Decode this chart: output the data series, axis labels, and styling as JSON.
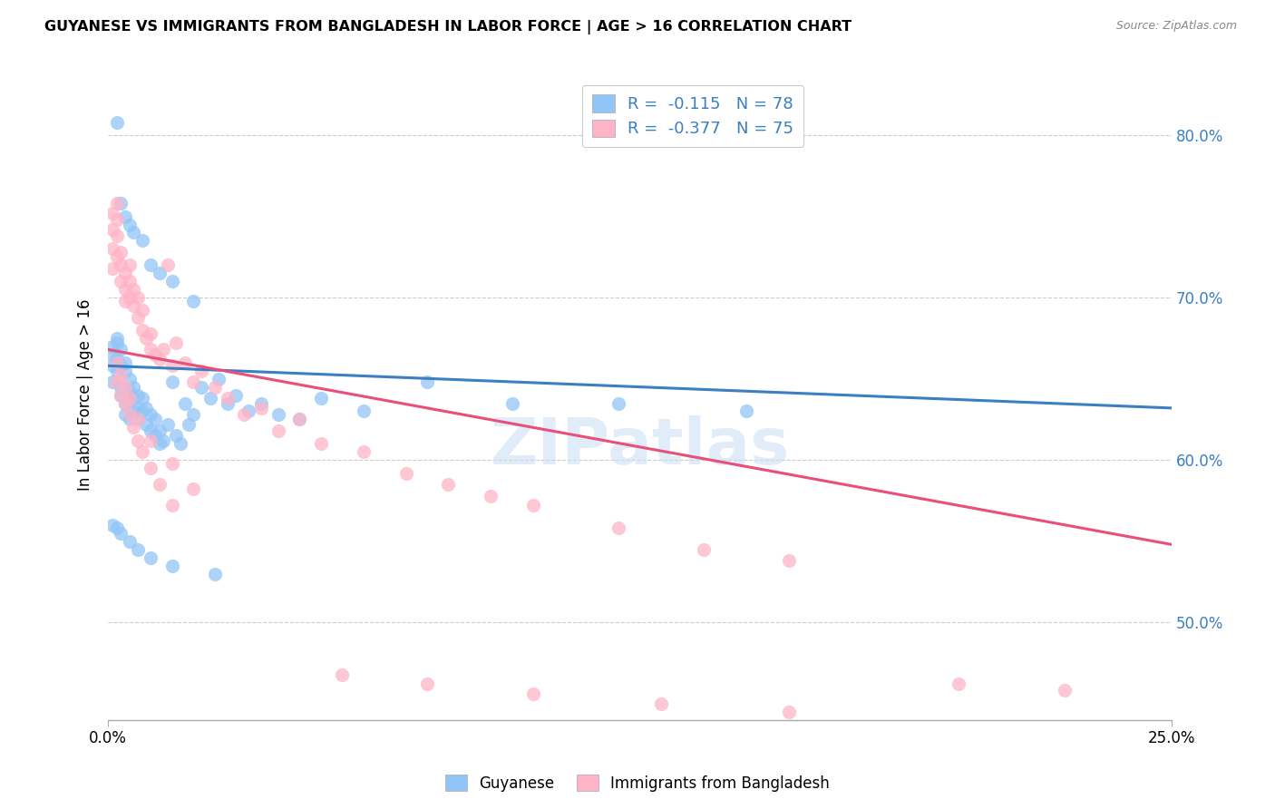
{
  "title": "GUYANESE VS IMMIGRANTS FROM BANGLADESH IN LABOR FORCE | AGE > 16 CORRELATION CHART",
  "source": "Source: ZipAtlas.com",
  "ylabel": "In Labor Force | Age > 16",
  "y_tick_values": [
    0.8,
    0.7,
    0.6,
    0.5
  ],
  "x_range": [
    0.0,
    0.25
  ],
  "y_range": [
    0.44,
    0.84
  ],
  "legend_label1": "Guyanese",
  "legend_label2": "Immigrants from Bangladesh",
  "color_blue": "#92c5f7",
  "color_pink": "#ffb3c6",
  "color_blue_line": "#3a7fc1",
  "color_pink_line": "#e8507a",
  "watermark": "ZIPatlas",
  "blue_line_y0": 0.658,
  "blue_line_y1": 0.632,
  "pink_line_y0": 0.668,
  "pink_line_y1": 0.548,
  "guyanese_x": [
    0.001,
    0.001,
    0.001,
    0.001,
    0.002,
    0.002,
    0.002,
    0.002,
    0.002,
    0.003,
    0.003,
    0.003,
    0.003,
    0.004,
    0.004,
    0.004,
    0.004,
    0.005,
    0.005,
    0.005,
    0.005,
    0.006,
    0.006,
    0.006,
    0.007,
    0.007,
    0.007,
    0.008,
    0.008,
    0.009,
    0.009,
    0.01,
    0.01,
    0.011,
    0.011,
    0.012,
    0.012,
    0.013,
    0.014,
    0.015,
    0.016,
    0.017,
    0.018,
    0.019,
    0.02,
    0.022,
    0.024,
    0.026,
    0.028,
    0.03,
    0.033,
    0.036,
    0.04,
    0.045,
    0.05,
    0.06,
    0.075,
    0.095,
    0.12,
    0.15,
    0.002,
    0.003,
    0.004,
    0.005,
    0.006,
    0.008,
    0.01,
    0.012,
    0.015,
    0.02,
    0.001,
    0.002,
    0.003,
    0.005,
    0.007,
    0.01,
    0.015,
    0.025
  ],
  "guyanese_y": [
    0.665,
    0.67,
    0.658,
    0.648,
    0.672,
    0.66,
    0.655,
    0.662,
    0.675,
    0.658,
    0.668,
    0.645,
    0.64,
    0.655,
    0.66,
    0.635,
    0.628,
    0.65,
    0.642,
    0.638,
    0.625,
    0.645,
    0.638,
    0.63,
    0.64,
    0.632,
    0.625,
    0.638,
    0.63,
    0.632,
    0.622,
    0.628,
    0.618,
    0.625,
    0.615,
    0.618,
    0.61,
    0.612,
    0.622,
    0.648,
    0.615,
    0.61,
    0.635,
    0.622,
    0.628,
    0.645,
    0.638,
    0.65,
    0.635,
    0.64,
    0.63,
    0.635,
    0.628,
    0.625,
    0.638,
    0.63,
    0.648,
    0.635,
    0.635,
    0.63,
    0.808,
    0.758,
    0.75,
    0.745,
    0.74,
    0.735,
    0.72,
    0.715,
    0.71,
    0.698,
    0.56,
    0.558,
    0.555,
    0.55,
    0.545,
    0.54,
    0.535,
    0.53
  ],
  "bangladesh_x": [
    0.001,
    0.001,
    0.001,
    0.001,
    0.002,
    0.002,
    0.002,
    0.002,
    0.003,
    0.003,
    0.003,
    0.004,
    0.004,
    0.004,
    0.005,
    0.005,
    0.005,
    0.006,
    0.006,
    0.007,
    0.007,
    0.008,
    0.008,
    0.009,
    0.01,
    0.01,
    0.011,
    0.012,
    0.013,
    0.014,
    0.015,
    0.016,
    0.018,
    0.02,
    0.022,
    0.025,
    0.028,
    0.032,
    0.036,
    0.04,
    0.045,
    0.05,
    0.06,
    0.07,
    0.08,
    0.09,
    0.1,
    0.12,
    0.14,
    0.16,
    0.002,
    0.003,
    0.004,
    0.005,
    0.006,
    0.007,
    0.008,
    0.01,
    0.012,
    0.015,
    0.002,
    0.003,
    0.004,
    0.005,
    0.007,
    0.01,
    0.015,
    0.02,
    0.055,
    0.075,
    0.1,
    0.13,
    0.16,
    0.2,
    0.225
  ],
  "bangladesh_y": [
    0.73,
    0.718,
    0.742,
    0.752,
    0.725,
    0.738,
    0.748,
    0.758,
    0.72,
    0.71,
    0.728,
    0.715,
    0.705,
    0.698,
    0.72,
    0.71,
    0.7,
    0.705,
    0.695,
    0.7,
    0.688,
    0.692,
    0.68,
    0.675,
    0.678,
    0.668,
    0.665,
    0.662,
    0.668,
    0.72,
    0.658,
    0.672,
    0.66,
    0.648,
    0.655,
    0.645,
    0.638,
    0.628,
    0.632,
    0.618,
    0.625,
    0.61,
    0.605,
    0.592,
    0.585,
    0.578,
    0.572,
    0.558,
    0.545,
    0.538,
    0.648,
    0.64,
    0.635,
    0.628,
    0.62,
    0.612,
    0.605,
    0.595,
    0.585,
    0.572,
    0.66,
    0.652,
    0.645,
    0.638,
    0.625,
    0.612,
    0.598,
    0.582,
    0.468,
    0.462,
    0.456,
    0.45,
    0.445,
    0.462,
    0.458
  ]
}
